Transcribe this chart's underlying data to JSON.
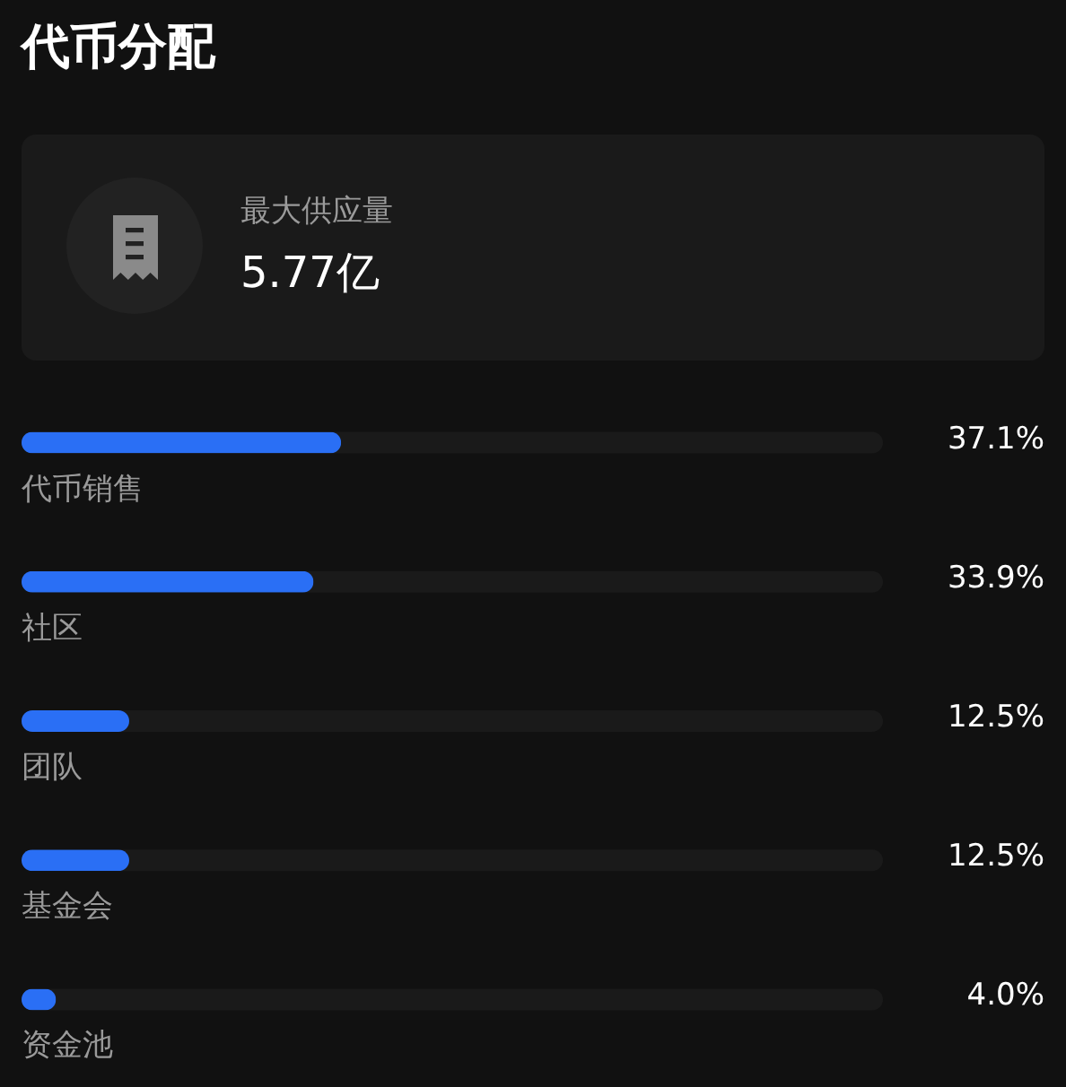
{
  "chart_data": {
    "type": "bar",
    "orientation": "horizontal",
    "title": "代币分配",
    "categories": [
      "代币销售",
      "社区",
      "团队",
      "基金会",
      "资金池"
    ],
    "values": [
      37.1,
      33.9,
      12.5,
      12.5,
      4.0
    ],
    "color": "#2a6ff5",
    "value_labels": [
      "37.1%",
      "33.9%",
      "12.5%",
      "12.5%",
      "4.0%"
    ],
    "xlim": [
      0,
      100
    ],
    "tick_labels": "y",
    "annotations": [
      "最大供应量",
      "5.77亿"
    ]
  }
}
